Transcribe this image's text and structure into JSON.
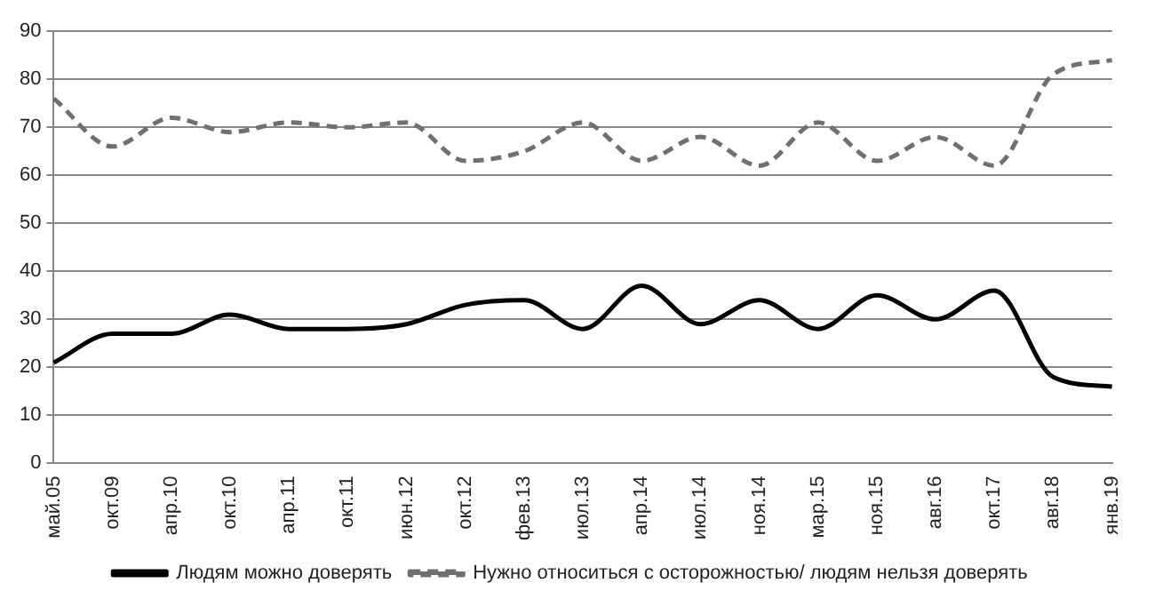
{
  "chart_data": {
    "type": "line",
    "categories": [
      "май.05",
      "окт.09",
      "апр.10",
      "окт.10",
      "апр.11",
      "окт.11",
      "июн.12",
      "окт.12",
      "фев.13",
      "июл.13",
      "апр.14",
      "июл.14",
      "ноя.14",
      "мар.15",
      "ноя.15",
      "авг.16",
      "окт.17",
      "авг.18",
      "янв.19"
    ],
    "series": [
      {
        "name": "Людям можно доверять",
        "color": "#000000",
        "line_style": "solid",
        "values": [
          21,
          27,
          27,
          31,
          28,
          28,
          29,
          33,
          34,
          28,
          37,
          29,
          34,
          28,
          35,
          30,
          36,
          18,
          16
        ]
      },
      {
        "name": "Нужно относиться с осторожностью/ людям нельзя доверять",
        "color": "#707070",
        "line_style": "dashed",
        "values": [
          76,
          66,
          72,
          69,
          71,
          70,
          71,
          63,
          65,
          71,
          63,
          68,
          62,
          71,
          63,
          68,
          62,
          81,
          84
        ]
      }
    ],
    "ylim": [
      0,
      90
    ],
    "yticks": [
      0,
      10,
      20,
      30,
      40,
      50,
      60,
      70,
      80,
      90
    ],
    "grid": "y",
    "legend": "bottom",
    "marker": "none"
  }
}
